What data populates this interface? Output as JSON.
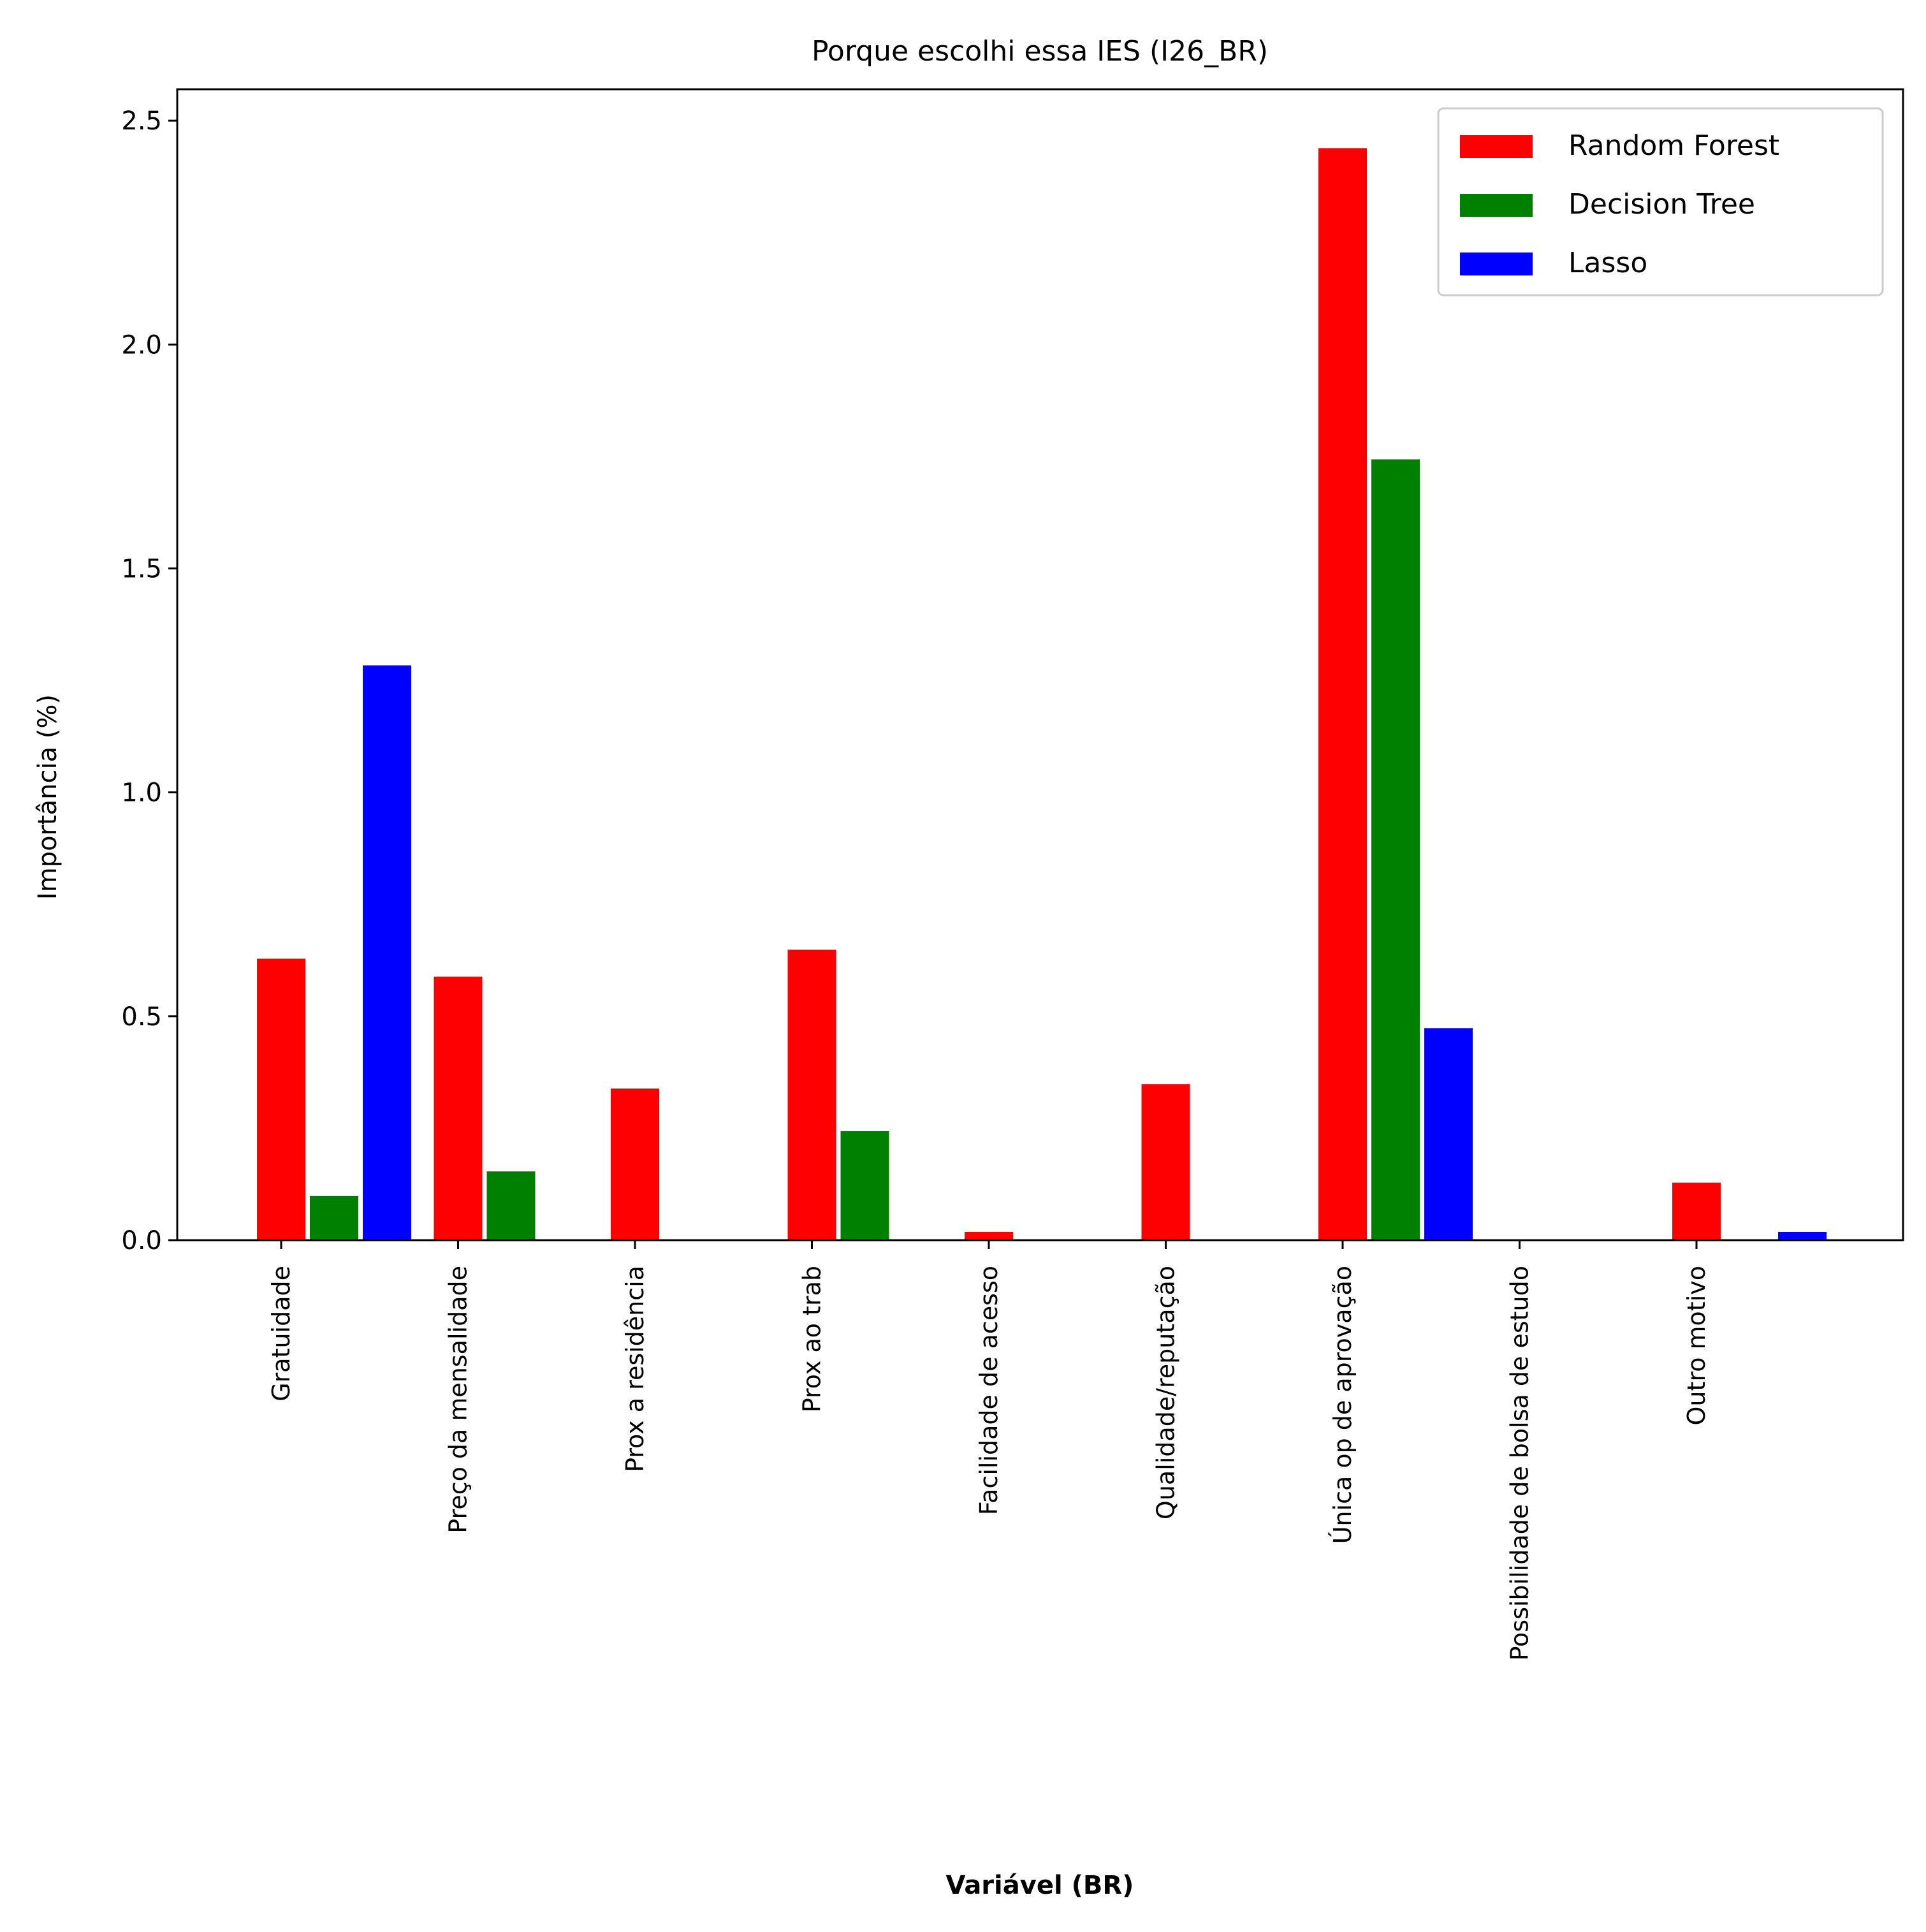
{
  "chart_data": {
    "type": "bar",
    "title": "Porque escolhi essa IES (I26_BR)",
    "xlabel": "Variável (BR)",
    "ylabel": "Importância (%)",
    "ylim": [
      0,
      2.57
    ],
    "yticks": [
      0.0,
      0.5,
      1.0,
      1.5,
      2.0,
      2.5
    ],
    "ytick_labels": [
      "0.0",
      "0.5",
      "1.0",
      "1.5",
      "2.0",
      "2.5"
    ],
    "grid": false,
    "legend_position": "top-right",
    "categories": [
      "Gratuidade",
      "Preço da mensalidade",
      "Prox a residência",
      "Prox ao trab",
      "Facilidade de acesso",
      "Qualidade/reputação",
      "Única op de aprovação",
      "Possibilidade de bolsa de estudo",
      "Outro motivo"
    ],
    "series": [
      {
        "name": "Random Forest",
        "color": "#ff0000",
        "values": [
          0.63,
          0.59,
          0.34,
          0.65,
          0.02,
          0.35,
          2.44,
          0.0,
          0.13
        ]
      },
      {
        "name": "Decision Tree",
        "color": "#008000",
        "values": [
          0.1,
          0.155,
          0.0,
          0.245,
          0.0,
          0.0,
          1.745,
          0.0,
          0.0
        ]
      },
      {
        "name": "Lasso",
        "color": "#0000ff",
        "values": [
          1.285,
          0.0,
          0.0,
          0.0,
          0.0,
          0.0,
          0.475,
          0.0,
          0.02
        ]
      }
    ]
  }
}
